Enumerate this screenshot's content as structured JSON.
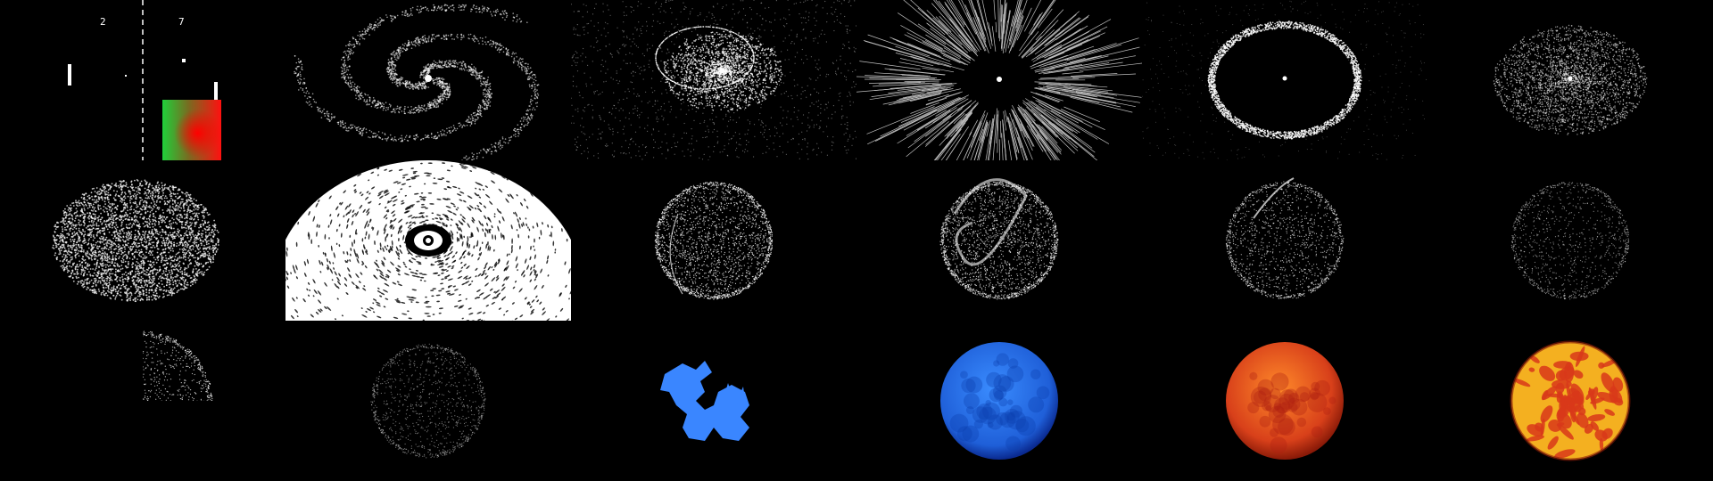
{
  "pong": {
    "score_left": "2",
    "score_right": "7"
  },
  "panels": [
    {
      "name": "pong-game-panel",
      "kind": "pong"
    },
    {
      "name": "spiral-galaxy-panel",
      "kind": "spiral"
    },
    {
      "name": "colliding-galaxy-panel",
      "kind": "collide"
    },
    {
      "name": "radial-burst-panel",
      "kind": "burst"
    },
    {
      "name": "particle-ring-panel",
      "kind": "ring"
    },
    {
      "name": "concentric-disc-panel",
      "kind": "disc"
    },
    {
      "name": "swirl-disc-panel",
      "kind": "swirl"
    },
    {
      "name": "zoomed-vortex-panel",
      "kind": "vortex"
    },
    {
      "name": "streak-sphere-panel",
      "kind": "sphere-streak"
    },
    {
      "name": "ribbon-sphere-panel",
      "kind": "sphere-ribbon"
    },
    {
      "name": "arc-sphere-panel",
      "kind": "sphere-arc"
    },
    {
      "name": "faint-sphere-panel",
      "kind": "sphere-faint"
    },
    {
      "name": "clipped-sphere-panel",
      "kind": "sphere-clipped"
    },
    {
      "name": "dim-sphere-panel",
      "kind": "sphere-dim"
    },
    {
      "name": "blue-dragon-panel",
      "kind": "dragon"
    },
    {
      "name": "blue-sphere-panel",
      "kind": "sphere-blue"
    },
    {
      "name": "orange-sphere-panel",
      "kind": "sphere-orange"
    },
    {
      "name": "lava-sphere-panel",
      "kind": "sphere-lava"
    }
  ],
  "colors": {
    "particle": "#ffffff",
    "background": "#000000",
    "dragon": "#3a86ff",
    "blue_sphere": "#2f7bf0",
    "orange_sphere": "#e0501a",
    "lava_sphere": "#f4b020"
  }
}
